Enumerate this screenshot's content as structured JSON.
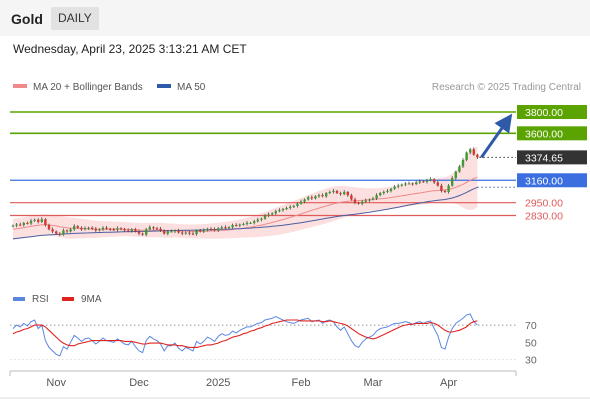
{
  "header": {
    "title": "Gold",
    "timeframe": "DAILY",
    "timestamp": "Wednesday, April 23, 2025 3:13:21 AM CET"
  },
  "colors": {
    "price_line_green": "#5ba300",
    "price_line_blue": "#3b6fe0",
    "price_line_red": "#e05a5a",
    "arrow": "#2e5aa8",
    "ma20": "#f08a8a",
    "bollinger_fill": "#fbd6d6",
    "ma50": "#4a5fa0",
    "rsi": "#5b86e0",
    "rsi_ma": "#e0231f",
    "candle_up": "#3f9a33",
    "candle_down": "#d6362e",
    "current_price": "#333333"
  },
  "chart_data": [
    {
      "type": "candlestick",
      "legend": [
        {
          "name": "MA 20 + Bollinger Bands",
          "color": "#f08a8a"
        },
        {
          "name": "MA 50",
          "color": "#2e5aa8"
        }
      ],
      "watermark": "Research © 2025 Trading Central",
      "ylim": [
        2450,
        3950
      ],
      "levels": [
        {
          "value": 3800,
          "label": "3800.00",
          "color": "#5ba300",
          "style": "box"
        },
        {
          "value": 3600,
          "label": "3600.00",
          "color": "#5ba300",
          "style": "box"
        },
        {
          "value": 3374.65,
          "label": "3374.65",
          "color": "#333333",
          "style": "current"
        },
        {
          "value": 3160,
          "label": "3160.00",
          "color": "#3b6fe0",
          "style": "box"
        },
        {
          "value": 2950,
          "label": "2950.00",
          "color": "#e05a5a",
          "style": "text"
        },
        {
          "value": 2830,
          "label": "2830.00",
          "color": "#e05a5a",
          "style": "text"
        }
      ],
      "x_ticks": [
        "Nov",
        "Dec",
        "2025",
        "Feb",
        "Mar",
        "Apr"
      ],
      "x_tick_index": [
        12,
        35,
        57,
        80,
        100,
        121
      ],
      "close": [
        2735,
        2745,
        2740,
        2760,
        2755,
        2780,
        2790,
        2770,
        2795,
        2740,
        2700,
        2680,
        2660,
        2650,
        2690,
        2680,
        2700,
        2730,
        2715,
        2700,
        2710,
        2715,
        2705,
        2690,
        2700,
        2715,
        2705,
        2700,
        2695,
        2710,
        2700,
        2690,
        2685,
        2700,
        2680,
        2660,
        2650,
        2700,
        2720,
        2710,
        2705,
        2690,
        2660,
        2680,
        2680,
        2690,
        2670,
        2660,
        2670,
        2660,
        2655,
        2690,
        2680,
        2690,
        2705,
        2700,
        2690,
        2710,
        2720,
        2715,
        2720,
        2740,
        2735,
        2745,
        2750,
        2760,
        2760,
        2775,
        2790,
        2800,
        2830,
        2840,
        2850,
        2870,
        2880,
        2890,
        2900,
        2910,
        2920,
        2940,
        2960,
        2980,
        3000,
        2990,
        3010,
        3020,
        3010,
        3040,
        3050,
        3060,
        3040,
        3030,
        3050,
        3020,
        2980,
        2950,
        2940,
        2960,
        2970,
        2980,
        2990,
        3020,
        3040,
        3050,
        3060,
        3080,
        3100,
        3110,
        3120,
        3130,
        3130,
        3125,
        3140,
        3150,
        3145,
        3160,
        3170,
        3140,
        3110,
        3060,
        3050,
        3110,
        3180,
        3240,
        3290,
        3350,
        3420,
        3450,
        3400,
        3374.65
      ],
      "ma20": [
        2700,
        2705,
        2710,
        2716,
        2722,
        2728,
        2734,
        2738,
        2742,
        2743,
        2741,
        2737,
        2732,
        2725,
        2720,
        2714,
        2711,
        2711,
        2710,
        2708,
        2706,
        2704,
        2702,
        2700,
        2700,
        2700,
        2701,
        2702,
        2702,
        2703,
        2702,
        2701,
        2700,
        2699,
        2697,
        2694,
        2692,
        2692,
        2693,
        2693,
        2693,
        2692,
        2690,
        2689,
        2688,
        2688,
        2686,
        2684,
        2683,
        2682,
        2680,
        2681,
        2681,
        2682,
        2683,
        2684,
        2685,
        2687,
        2690,
        2692,
        2695,
        2699,
        2703,
        2707,
        2711,
        2716,
        2721,
        2727,
        2733,
        2740,
        2748,
        2756,
        2764,
        2773,
        2782,
        2792,
        2802,
        2812,
        2822,
        2833,
        2844,
        2856,
        2867,
        2878,
        2889,
        2899,
        2909,
        2919,
        2929,
        2939,
        2946,
        2953,
        2959,
        2963,
        2966,
        2968,
        2969,
        2972,
        2975,
        2977,
        2980,
        2983,
        2986,
        2989,
        2993,
        2998,
        3003,
        3008,
        3014,
        3020,
        3026,
        3031,
        3036,
        3041,
        3046,
        3052,
        3058,
        3062,
        3065,
        3067,
        3070,
        3075,
        3083,
        3094,
        3107,
        3122,
        3141,
        3160,
        3176,
        3190
      ],
      "bb_upper": [
        2800,
        2805,
        2810,
        2815,
        2820,
        2826,
        2832,
        2835,
        2838,
        2840,
        2838,
        2834,
        2830,
        2825,
        2820,
        2815,
        2810,
        2808,
        2805,
        2800,
        2795,
        2790,
        2785,
        2780,
        2778,
        2776,
        2775,
        2774,
        2773,
        2772,
        2770,
        2768,
        2766,
        2764,
        2762,
        2760,
        2758,
        2760,
        2762,
        2762,
        2761,
        2760,
        2758,
        2756,
        2754,
        2752,
        2750,
        2748,
        2746,
        2745,
        2745,
        2746,
        2748,
        2750,
        2752,
        2755,
        2758,
        2762,
        2766,
        2770,
        2775,
        2781,
        2787,
        2794,
        2801,
        2809,
        2818,
        2828,
        2838,
        2850,
        2862,
        2875,
        2888,
        2902,
        2915,
        2928,
        2941,
        2954,
        2967,
        2980,
        2994,
        3008,
        3022,
        3035,
        3048,
        3060,
        3071,
        3082,
        3092,
        3100,
        3104,
        3106,
        3106,
        3104,
        3100,
        3095,
        3090,
        3088,
        3086,
        3085,
        3085,
        3086,
        3088,
        3091,
        3095,
        3100,
        3106,
        3112,
        3119,
        3126,
        3133,
        3140,
        3146,
        3152,
        3158,
        3164,
        3170,
        3175,
        3180,
        3184,
        3190,
        3200,
        3220,
        3250,
        3290,
        3340,
        3395,
        3440,
        3465,
        3475
      ],
      "bb_lower": [
        2600,
        2605,
        2610,
        2617,
        2624,
        2630,
        2636,
        2641,
        2646,
        2646,
        2644,
        2640,
        2634,
        2625,
        2620,
        2613,
        2612,
        2614,
        2615,
        2616,
        2617,
        2618,
        2619,
        2620,
        2622,
        2624,
        2627,
        2630,
        2631,
        2634,
        2634,
        2634,
        2634,
        2634,
        2632,
        2628,
        2626,
        2624,
        2624,
        2624,
        2625,
        2624,
        2622,
        2622,
        2622,
        2624,
        2622,
        2620,
        2620,
        2619,
        2615,
        2616,
        2614,
        2614,
        2614,
        2613,
        2612,
        2612,
        2614,
        2614,
        2615,
        2617,
        2619,
        2620,
        2621,
        2623,
        2624,
        2626,
        2628,
        2630,
        2634,
        2637,
        2640,
        2644,
        2649,
        2656,
        2663,
        2670,
        2677,
        2686,
        2694,
        2704,
        2712,
        2721,
        2730,
        2738,
        2747,
        2756,
        2766,
        2778,
        2788,
        2800,
        2812,
        2822,
        2832,
        2841,
        2848,
        2856,
        2864,
        2869,
        2875,
        2880,
        2884,
        2887,
        2891,
        2896,
        2900,
        2904,
        2909,
        2914,
        2919,
        2922,
        2926,
        2930,
        2934,
        2940,
        2946,
        2949,
        2950,
        2950,
        2950,
        2950,
        2946,
        2938,
        2924,
        2904,
        2887,
        2880,
        2887,
        2905
      ],
      "ma50": [
        2610,
        2615,
        2619,
        2623,
        2627,
        2631,
        2635,
        2639,
        2643,
        2646,
        2648,
        2650,
        2652,
        2654,
        2656,
        2658,
        2660,
        2662,
        2664,
        2665,
        2666,
        2667,
        2668,
        2669,
        2670,
        2671,
        2672,
        2673,
        2674,
        2675,
        2676,
        2677,
        2678,
        2679,
        2680,
        2680,
        2681,
        2681,
        2682,
        2683,
        2684,
        2685,
        2686,
        2687,
        2688,
        2689,
        2690,
        2690,
        2691,
        2692,
        2693,
        2693,
        2694,
        2695,
        2696,
        2697,
        2698,
        2699,
        2700,
        2701,
        2702,
        2703,
        2705,
        2706,
        2708,
        2710,
        2712,
        2714,
        2716,
        2719,
        2722,
        2725,
        2728,
        2731,
        2735,
        2739,
        2743,
        2747,
        2752,
        2757,
        2762,
        2768,
        2773,
        2779,
        2785,
        2791,
        2797,
        2803,
        2809,
        2815,
        2820,
        2825,
        2830,
        2834,
        2838,
        2842,
        2846,
        2851,
        2856,
        2861,
        2866,
        2872,
        2877,
        2883,
        2889,
        2895,
        2901,
        2907,
        2914,
        2921,
        2928,
        2934,
        2940,
        2946,
        2952,
        2958,
        2964,
        2968,
        2972,
        2976,
        2980,
        2986,
        2994,
        3004,
        3016,
        3030,
        3046,
        3064,
        3080,
        3094
      ]
    },
    {
      "type": "line",
      "legend": [
        {
          "name": "RSI",
          "color": "#5b86e0"
        },
        {
          "name": "9MA",
          "color": "#e0231f"
        }
      ],
      "ylim": [
        20,
        90
      ],
      "y_ticks": [
        70,
        50,
        30
      ],
      "rsi": [
        66,
        70,
        68,
        72,
        69,
        74,
        76,
        66,
        70,
        52,
        44,
        40,
        36,
        34,
        45,
        42,
        50,
        58,
        55,
        51,
        54,
        55,
        52,
        48,
        51,
        55,
        52,
        51,
        50,
        54,
        51,
        48,
        47,
        51,
        45,
        40,
        38,
        52,
        57,
        54,
        52,
        48,
        40,
        46,
        46,
        49,
        43,
        40,
        44,
        42,
        40,
        51,
        48,
        51,
        56,
        54,
        51,
        57,
        60,
        58,
        59,
        63,
        61,
        64,
        66,
        68,
        68,
        70,
        72,
        73,
        76,
        77,
        78,
        80,
        78,
        76,
        74,
        73,
        72,
        74,
        76,
        77,
        78,
        74,
        75,
        76,
        72,
        75,
        76,
        74,
        68,
        64,
        68,
        60,
        52,
        46,
        44,
        50,
        54,
        56,
        58,
        63,
        66,
        67,
        68,
        70,
        72,
        72,
        73,
        74,
        73,
        71,
        73,
        74,
        72,
        74,
        75,
        66,
        58,
        44,
        42,
        56,
        66,
        72,
        75,
        78,
        82,
        83,
        74,
        70
      ],
      "rsi_ma": [
        60,
        62,
        63,
        65,
        66,
        68,
        70,
        70,
        70,
        68,
        64,
        60,
        56,
        52,
        49,
        47,
        46,
        46,
        48,
        49,
        50,
        51,
        52,
        52,
        52,
        52,
        52,
        52,
        52,
        52,
        52,
        51,
        51,
        51,
        50,
        49,
        48,
        48,
        49,
        49,
        49,
        49,
        48,
        47,
        47,
        47,
        46,
        46,
        45,
        44,
        44,
        44,
        45,
        46,
        47,
        47,
        48,
        49,
        51,
        52,
        54,
        56,
        57,
        58,
        60,
        61,
        63,
        64,
        66,
        67,
        69,
        70,
        72,
        73,
        74,
        75,
        76,
        76,
        76,
        76,
        75,
        75,
        75,
        75,
        75,
        75,
        74,
        74,
        75,
        74,
        73,
        72,
        71,
        69,
        66,
        63,
        60,
        58,
        56,
        55,
        54,
        55,
        57,
        59,
        61,
        63,
        65,
        67,
        69,
        70,
        71,
        71,
        72,
        72,
        72,
        72,
        73,
        72,
        70,
        67,
        64,
        62,
        62,
        63,
        64,
        66,
        68,
        72,
        74,
        75
      ]
    }
  ]
}
